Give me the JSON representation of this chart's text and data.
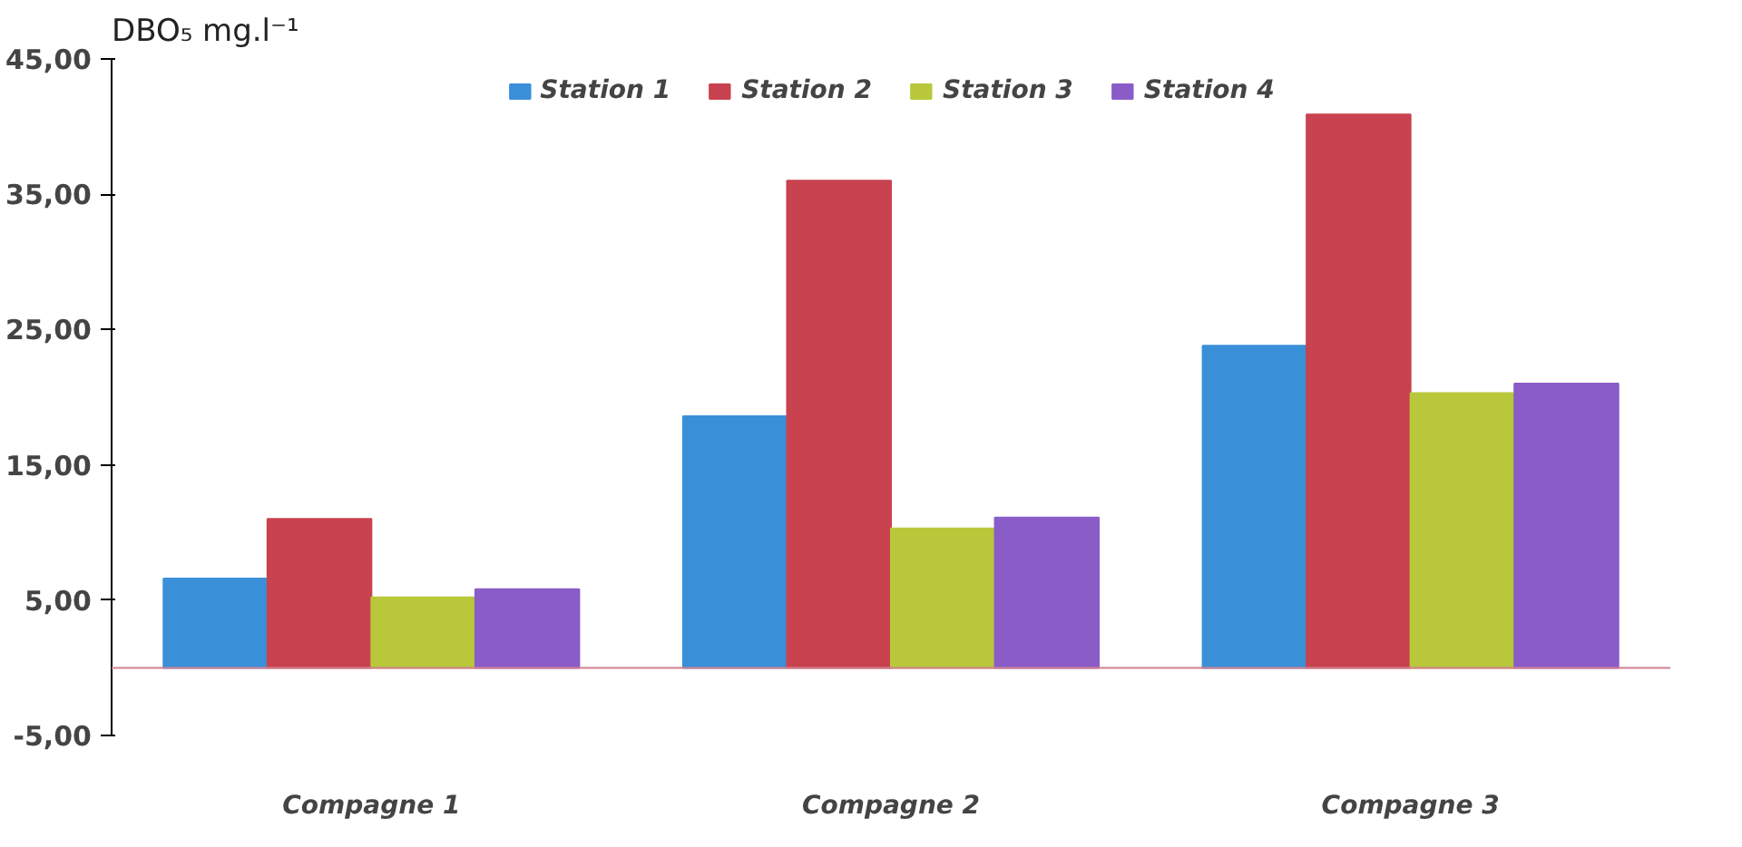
{
  "chart_data": {
    "type": "bar",
    "ylabel": "DBO₅ mg.l⁻¹",
    "categories": [
      "Compagne 1",
      "Compagne 2",
      "Compagne 3"
    ],
    "series": [
      {
        "name": "Station 1",
        "color": "#3a8fd9",
        "values": [
          6.6,
          18.6,
          23.8
        ]
      },
      {
        "name": "Station 2",
        "color": "#c8424f",
        "values": [
          11.0,
          36.0,
          40.9
        ]
      },
      {
        "name": "Station 3",
        "color": "#b8c83a",
        "values": [
          5.2,
          10.3,
          20.3
        ]
      },
      {
        "name": "Station 4",
        "color": "#8a5cc8",
        "values": [
          5.8,
          11.1,
          21.0
        ]
      }
    ],
    "ylim": [
      -5,
      45
    ],
    "yticks": [
      {
        "value": -5,
        "label": "-5,00"
      },
      {
        "value": 5,
        "label": "5,00"
      },
      {
        "value": 15,
        "label": "15,00"
      },
      {
        "value": 25,
        "label": "25,00"
      },
      {
        "value": 35,
        "label": "35,00"
      },
      {
        "value": 45,
        "label": "45,00"
      }
    ],
    "ref_lines": [
      {
        "axis": "y",
        "value": 0,
        "color": "#d08090"
      }
    ],
    "grid": false,
    "legend": "top"
  }
}
